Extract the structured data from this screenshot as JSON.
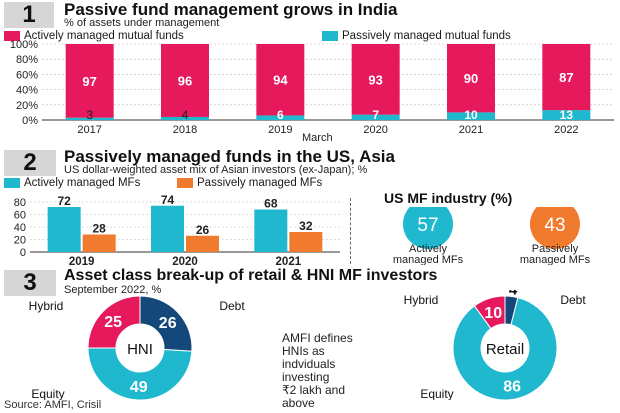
{
  "section1": {
    "number": "1",
    "title": "Passive fund management grows in India",
    "subtitle": "% of assets under management",
    "legend": [
      "Actively managed mutual funds",
      "Passively managed mutual funds"
    ],
    "xlabel": "March"
  },
  "section2": {
    "number": "2",
    "title": "Passively managed funds in the US, Asia",
    "subtitle": "US dollar-weighted asset mix of Asian investors (ex-Japan); %",
    "legend": [
      "Actively managed MFs",
      "Passively managed MFs"
    ],
    "us_title": "US MF industry (%)",
    "us_active_value": "57",
    "us_active_label": [
      "Actively",
      "managed MFs"
    ],
    "us_passive_value": "43",
    "us_passive_label": [
      "Passively",
      "managed MFs"
    ]
  },
  "section3": {
    "number": "3",
    "title": "Asset class break-up of retail & HNI MF investors",
    "subtitle": "September 2022, %",
    "note": [
      "AMFI defines",
      "HNIs as",
      "indviduals",
      "investing",
      "₹2 lakh and",
      "above"
    ]
  },
  "source": "Source: AMFI, Crisil",
  "colors": {
    "active": "#e5195b",
    "passive": "#1fb8cf",
    "passive_asia": "#f07a2d",
    "debt": "#14487a",
    "gray": "#d6d6d6"
  },
  "chart_data": [
    {
      "type": "bar",
      "stacked": true,
      "categories": [
        "2017",
        "2018",
        "2019",
        "2020",
        "2021",
        "2022"
      ],
      "series": [
        {
          "name": "Actively managed mutual funds",
          "values": [
            97,
            96,
            94,
            93,
            90,
            87
          ]
        },
        {
          "name": "Passively managed mutual funds",
          "values": [
            3,
            4,
            6,
            7,
            10,
            13
          ]
        }
      ],
      "xlabel": "March",
      "ylim": [
        0,
        100
      ],
      "yticks": [
        "0%",
        "20%",
        "40%",
        "60%",
        "80%",
        "100%"
      ]
    },
    {
      "type": "bar",
      "categories": [
        "2019",
        "2020",
        "2021"
      ],
      "series": [
        {
          "name": "Actively managed MFs",
          "values": [
            72,
            74,
            68
          ]
        },
        {
          "name": "Passively managed MFs",
          "values": [
            28,
            26,
            32
          ]
        }
      ],
      "ylim": [
        0,
        80
      ],
      "yticks": [
        "0",
        "20",
        "40",
        "60",
        "80"
      ]
    },
    {
      "type": "pie",
      "title": "US MF industry (%)",
      "labels": [
        "Actively managed MFs",
        "Passively managed MFs"
      ],
      "values": [
        57,
        43
      ]
    },
    {
      "type": "pie",
      "center_label": "HNI",
      "labels": [
        "Hybrid",
        "Debt",
        "Equity"
      ],
      "values": [
        25,
        26,
        49
      ]
    },
    {
      "type": "pie",
      "center_label": "Retail",
      "labels": [
        "Hybrid",
        "Debt",
        "Equity"
      ],
      "values": [
        10,
        4,
        86
      ]
    }
  ]
}
